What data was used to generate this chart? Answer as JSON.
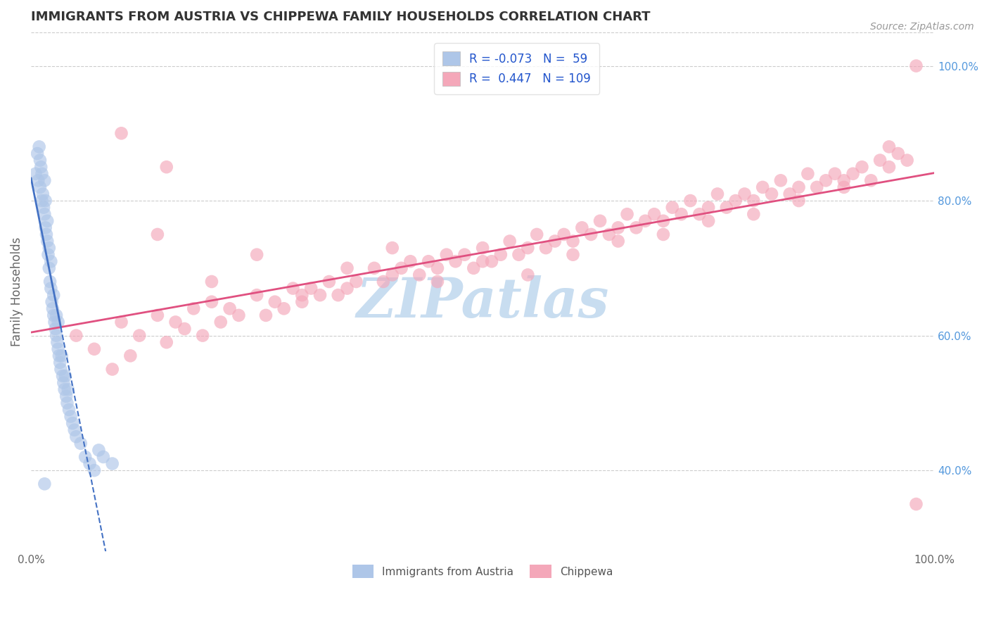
{
  "title": "IMMIGRANTS FROM AUSTRIA VS CHIPPEWA FAMILY HOUSEHOLDS CORRELATION CHART",
  "source": "Source: ZipAtlas.com",
  "ylabel": "Family Households",
  "legend_labels": [
    "Immigrants from Austria",
    "Chippewa"
  ],
  "r_blue": -0.073,
  "n_blue": 59,
  "r_pink": 0.447,
  "n_pink": 109,
  "blue_color": "#aec6e8",
  "pink_color": "#f4a7b9",
  "blue_line_color": "#4472c4",
  "pink_line_color": "#e05080",
  "right_yticks": [
    "100.0%",
    "80.0%",
    "60.0%",
    "40.0%"
  ],
  "right_ytick_vals": [
    1.0,
    0.8,
    0.6,
    0.4
  ],
  "xlim": [
    0.0,
    1.0
  ],
  "ylim": [
    0.28,
    1.05
  ],
  "blue_scatter_x": [
    0.005,
    0.007,
    0.008,
    0.009,
    0.01,
    0.01,
    0.011,
    0.012,
    0.012,
    0.013,
    0.014,
    0.015,
    0.015,
    0.016,
    0.016,
    0.017,
    0.018,
    0.018,
    0.019,
    0.02,
    0.02,
    0.021,
    0.022,
    0.022,
    0.023,
    0.024,
    0.025,
    0.025,
    0.026,
    0.027,
    0.028,
    0.028,
    0.029,
    0.03,
    0.03,
    0.031,
    0.032,
    0.033,
    0.034,
    0.035,
    0.036,
    0.037,
    0.038,
    0.039,
    0.04,
    0.041,
    0.042,
    0.044,
    0.046,
    0.048,
    0.05,
    0.055,
    0.06,
    0.065,
    0.07,
    0.075,
    0.08,
    0.09,
    0.015
  ],
  "blue_scatter_y": [
    0.84,
    0.87,
    0.83,
    0.88,
    0.86,
    0.82,
    0.85,
    0.84,
    0.8,
    0.81,
    0.79,
    0.83,
    0.78,
    0.8,
    0.76,
    0.75,
    0.74,
    0.77,
    0.72,
    0.73,
    0.7,
    0.68,
    0.67,
    0.71,
    0.65,
    0.64,
    0.63,
    0.66,
    0.62,
    0.61,
    0.6,
    0.63,
    0.59,
    0.58,
    0.62,
    0.57,
    0.56,
    0.55,
    0.57,
    0.54,
    0.53,
    0.52,
    0.54,
    0.51,
    0.5,
    0.52,
    0.49,
    0.48,
    0.47,
    0.46,
    0.45,
    0.44,
    0.42,
    0.41,
    0.4,
    0.43,
    0.42,
    0.41,
    0.38
  ],
  "pink_scatter_x": [
    0.05,
    0.07,
    0.09,
    0.1,
    0.11,
    0.12,
    0.14,
    0.15,
    0.16,
    0.17,
    0.18,
    0.19,
    0.2,
    0.21,
    0.22,
    0.23,
    0.25,
    0.26,
    0.27,
    0.28,
    0.29,
    0.3,
    0.31,
    0.32,
    0.33,
    0.34,
    0.35,
    0.36,
    0.38,
    0.39,
    0.4,
    0.41,
    0.42,
    0.43,
    0.44,
    0.45,
    0.46,
    0.47,
    0.48,
    0.49,
    0.5,
    0.51,
    0.52,
    0.53,
    0.54,
    0.55,
    0.56,
    0.57,
    0.58,
    0.59,
    0.6,
    0.61,
    0.62,
    0.63,
    0.64,
    0.65,
    0.66,
    0.67,
    0.68,
    0.69,
    0.7,
    0.71,
    0.72,
    0.73,
    0.74,
    0.75,
    0.76,
    0.77,
    0.78,
    0.79,
    0.8,
    0.81,
    0.82,
    0.83,
    0.84,
    0.85,
    0.86,
    0.87,
    0.88,
    0.89,
    0.9,
    0.91,
    0.92,
    0.93,
    0.94,
    0.95,
    0.96,
    0.97,
    0.98,
    0.14,
    0.2,
    0.25,
    0.3,
    0.35,
    0.4,
    0.45,
    0.5,
    0.55,
    0.6,
    0.65,
    0.7,
    0.75,
    0.8,
    0.85,
    0.9,
    0.95,
    0.1,
    0.15,
    0.98
  ],
  "pink_scatter_y": [
    0.6,
    0.58,
    0.55,
    0.62,
    0.57,
    0.6,
    0.63,
    0.59,
    0.62,
    0.61,
    0.64,
    0.6,
    0.65,
    0.62,
    0.64,
    0.63,
    0.66,
    0.63,
    0.65,
    0.64,
    0.67,
    0.65,
    0.67,
    0.66,
    0.68,
    0.66,
    0.67,
    0.68,
    0.7,
    0.68,
    0.69,
    0.7,
    0.71,
    0.69,
    0.71,
    0.7,
    0.72,
    0.71,
    0.72,
    0.7,
    0.73,
    0.71,
    0.72,
    0.74,
    0.72,
    0.73,
    0.75,
    0.73,
    0.74,
    0.75,
    0.74,
    0.76,
    0.75,
    0.77,
    0.75,
    0.76,
    0.78,
    0.76,
    0.77,
    0.78,
    0.77,
    0.79,
    0.78,
    0.8,
    0.78,
    0.79,
    0.81,
    0.79,
    0.8,
    0.81,
    0.8,
    0.82,
    0.81,
    0.83,
    0.81,
    0.82,
    0.84,
    0.82,
    0.83,
    0.84,
    0.83,
    0.84,
    0.85,
    0.83,
    0.86,
    0.85,
    0.87,
    0.86,
    1.0,
    0.75,
    0.68,
    0.72,
    0.66,
    0.7,
    0.73,
    0.68,
    0.71,
    0.69,
    0.72,
    0.74,
    0.75,
    0.77,
    0.78,
    0.8,
    0.82,
    0.88,
    0.9,
    0.85,
    0.35
  ],
  "background_color": "#ffffff",
  "grid_color": "#cccccc",
  "title_color": "#333333",
  "watermark_text": "ZIPatlas",
  "watermark_color": "#c8ddf0"
}
